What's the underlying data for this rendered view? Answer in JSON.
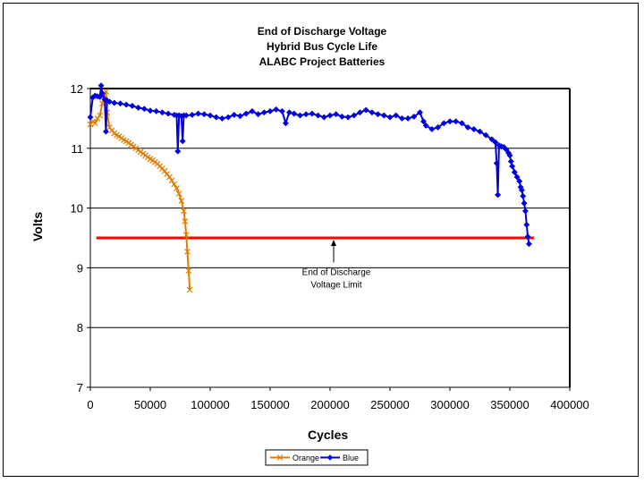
{
  "chart_data": {
    "type": "line",
    "title_lines": [
      "End of Discharge Voltage",
      "Hybrid Bus Cycle Life",
      "ALABC Project Batteries"
    ],
    "xlabel": "Cycles",
    "ylabel": "Volts",
    "xlim": [
      0,
      400000
    ],
    "ylim": [
      7,
      12
    ],
    "xticks": [
      0,
      50000,
      100000,
      150000,
      200000,
      250000,
      300000,
      350000,
      400000
    ],
    "xtick_labels": [
      "0",
      "50000",
      "100000",
      "150000",
      "200000",
      "250000",
      "300000",
      "350000",
      "400000"
    ],
    "yticks": [
      7,
      8,
      9,
      10,
      11,
      12
    ],
    "ytick_labels": [
      "7",
      "8",
      "9",
      "10",
      "11",
      "12"
    ],
    "grid": "horizontal",
    "legend_position": "bottom",
    "limit_line": {
      "y": 9.5,
      "x_range": [
        5000,
        370000
      ],
      "color": "#ff0000"
    },
    "annotation": {
      "lines": [
        "End of Discharge",
        "Voltage Limit"
      ],
      "arrow_target": [
        203000,
        9.5
      ],
      "text_anchor": [
        203000,
        9.0
      ]
    },
    "series": [
      {
        "name": "Orange",
        "color": "#e07b00",
        "marker": "x",
        "points": [
          [
            0,
            11.4
          ],
          [
            2000,
            11.45
          ],
          [
            4000,
            11.42
          ],
          [
            6000,
            11.5
          ],
          [
            8000,
            11.55
          ],
          [
            10000,
            11.75
          ],
          [
            12000,
            11.9
          ],
          [
            13000,
            11.95
          ],
          [
            14000,
            11.6
          ],
          [
            16000,
            11.35
          ],
          [
            18000,
            11.3
          ],
          [
            20000,
            11.25
          ],
          [
            22000,
            11.22
          ],
          [
            24000,
            11.2
          ],
          [
            26000,
            11.17
          ],
          [
            28000,
            11.14
          ],
          [
            30000,
            11.12
          ],
          [
            32000,
            11.09
          ],
          [
            34000,
            11.06
          ],
          [
            36000,
            11.03
          ],
          [
            38000,
            11.0
          ],
          [
            40000,
            10.97
          ],
          [
            42000,
            10.94
          ],
          [
            44000,
            10.91
          ],
          [
            46000,
            10.88
          ],
          [
            48000,
            10.85
          ],
          [
            50000,
            10.82
          ],
          [
            52000,
            10.8
          ],
          [
            54000,
            10.77
          ],
          [
            56000,
            10.74
          ],
          [
            58000,
            10.7
          ],
          [
            60000,
            10.66
          ],
          [
            62000,
            10.62
          ],
          [
            64000,
            10.57
          ],
          [
            66000,
            10.52
          ],
          [
            68000,
            10.46
          ],
          [
            70000,
            10.4
          ],
          [
            72000,
            10.33
          ],
          [
            74000,
            10.24
          ],
          [
            76000,
            10.12
          ],
          [
            78000,
            9.95
          ],
          [
            79000,
            9.78
          ],
          [
            80000,
            9.55
          ],
          [
            81000,
            9.27
          ],
          [
            82000,
            8.95
          ],
          [
            83000,
            8.63
          ]
        ]
      },
      {
        "name": "Blue",
        "color": "#0000dd",
        "marker": "diamond",
        "points": [
          [
            0,
            11.52
          ],
          [
            2000,
            11.85
          ],
          [
            4000,
            11.88
          ],
          [
            6000,
            11.87
          ],
          [
            8000,
            11.86
          ],
          [
            9000,
            12.05
          ],
          [
            10000,
            11.92
          ],
          [
            12000,
            11.82
          ],
          [
            13000,
            11.28
          ],
          [
            14000,
            11.8
          ],
          [
            16000,
            11.78
          ],
          [
            20000,
            11.76
          ],
          [
            25000,
            11.75
          ],
          [
            30000,
            11.73
          ],
          [
            35000,
            11.71
          ],
          [
            40000,
            11.68
          ],
          [
            45000,
            11.66
          ],
          [
            50000,
            11.63
          ],
          [
            55000,
            11.62
          ],
          [
            60000,
            11.6
          ],
          [
            65000,
            11.58
          ],
          [
            70000,
            11.56
          ],
          [
            72000,
            11.55
          ],
          [
            73000,
            10.95
          ],
          [
            74000,
            11.55
          ],
          [
            76000,
            11.54
          ],
          [
            77000,
            11.12
          ],
          [
            78000,
            11.55
          ],
          [
            80000,
            11.55
          ],
          [
            85000,
            11.56
          ],
          [
            90000,
            11.58
          ],
          [
            95000,
            11.57
          ],
          [
            100000,
            11.55
          ],
          [
            105000,
            11.52
          ],
          [
            110000,
            11.5
          ],
          [
            115000,
            11.52
          ],
          [
            120000,
            11.56
          ],
          [
            125000,
            11.54
          ],
          [
            130000,
            11.58
          ],
          [
            135000,
            11.62
          ],
          [
            140000,
            11.57
          ],
          [
            145000,
            11.6
          ],
          [
            150000,
            11.62
          ],
          [
            155000,
            11.65
          ],
          [
            160000,
            11.62
          ],
          [
            163000,
            11.42
          ],
          [
            166000,
            11.6
          ],
          [
            170000,
            11.58
          ],
          [
            175000,
            11.55
          ],
          [
            180000,
            11.57
          ],
          [
            185000,
            11.58
          ],
          [
            190000,
            11.55
          ],
          [
            195000,
            11.52
          ],
          [
            200000,
            11.55
          ],
          [
            205000,
            11.57
          ],
          [
            210000,
            11.53
          ],
          [
            215000,
            11.52
          ],
          [
            220000,
            11.55
          ],
          [
            225000,
            11.6
          ],
          [
            230000,
            11.64
          ],
          [
            235000,
            11.6
          ],
          [
            240000,
            11.57
          ],
          [
            245000,
            11.55
          ],
          [
            250000,
            11.52
          ],
          [
            255000,
            11.55
          ],
          [
            260000,
            11.5
          ],
          [
            265000,
            11.5
          ],
          [
            270000,
            11.53
          ],
          [
            275000,
            11.6
          ],
          [
            278000,
            11.45
          ],
          [
            280000,
            11.38
          ],
          [
            285000,
            11.32
          ],
          [
            290000,
            11.35
          ],
          [
            295000,
            11.42
          ],
          [
            300000,
            11.45
          ],
          [
            305000,
            11.45
          ],
          [
            310000,
            11.42
          ],
          [
            315000,
            11.35
          ],
          [
            320000,
            11.32
          ],
          [
            325000,
            11.28
          ],
          [
            330000,
            11.22
          ],
          [
            335000,
            11.15
          ],
          [
            338000,
            11.1
          ],
          [
            339000,
            10.75
          ],
          [
            340000,
            10.22
          ],
          [
            341000,
            11.05
          ],
          [
            343000,
            11.03
          ],
          [
            345000,
            11.02
          ],
          [
            347000,
            10.98
          ],
          [
            349000,
            10.92
          ],
          [
            350000,
            10.88
          ],
          [
            351000,
            10.78
          ],
          [
            352000,
            10.7
          ],
          [
            354000,
            10.6
          ],
          [
            356000,
            10.52
          ],
          [
            358000,
            10.45
          ],
          [
            359000,
            10.35
          ],
          [
            360000,
            10.3
          ],
          [
            361000,
            10.2
          ],
          [
            362000,
            10.08
          ],
          [
            363000,
            9.95
          ],
          [
            364000,
            9.72
          ],
          [
            365000,
            9.52
          ],
          [
            366000,
            9.4
          ]
        ]
      }
    ]
  }
}
